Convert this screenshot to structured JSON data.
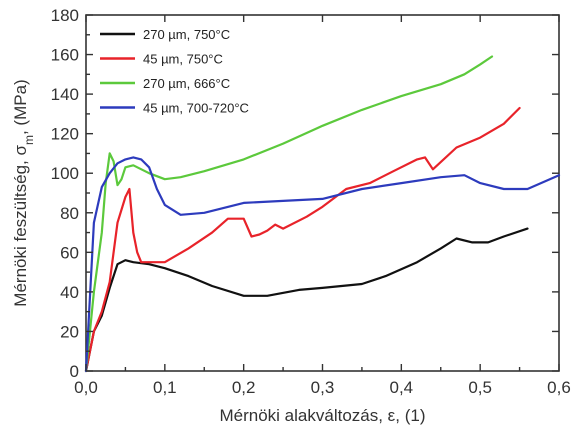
{
  "chart_data": {
    "type": "line",
    "xlabel": "Mérnöki alakváltozás, ε, (1)",
    "ylabel": "Mérnöki feszültség, σm, (MPa)",
    "ylabel_parts": {
      "main": "Mérnöki feszültség, σ",
      "sub": "m",
      "tail": ", (MPa)"
    },
    "xlim": [
      0,
      0.6
    ],
    "ylim": [
      0,
      180
    ],
    "xticks": [
      0.0,
      0.1,
      0.2,
      0.3,
      0.4,
      0.5,
      0.6
    ],
    "xtick_labels": [
      "0,0",
      "0,1",
      "0,2",
      "0,3",
      "0,4",
      "0,5",
      "0,6"
    ],
    "yticks": [
      0,
      20,
      40,
      60,
      80,
      100,
      120,
      140,
      160,
      180
    ],
    "ytick_labels": [
      "0",
      "20",
      "40",
      "60",
      "80",
      "100",
      "120",
      "140",
      "160",
      "180"
    ],
    "grid": false,
    "legend_position": "top-left",
    "series": [
      {
        "name": "270 µm, 750°C",
        "color": "#111111",
        "x": [
          0.0,
          0.01,
          0.02,
          0.03,
          0.04,
          0.05,
          0.06,
          0.08,
          0.1,
          0.13,
          0.16,
          0.2,
          0.23,
          0.27,
          0.3,
          0.35,
          0.38,
          0.42,
          0.45,
          0.47,
          0.49,
          0.51,
          0.53,
          0.56
        ],
        "y": [
          0,
          20,
          28,
          42,
          54,
          56,
          55,
          54,
          52,
          48,
          43,
          38,
          38,
          41,
          42,
          44,
          48,
          55,
          62,
          67,
          65,
          65,
          68,
          72
        ]
      },
      {
        "name": "45 µm, 750°C",
        "color": "#e8232a",
        "x": [
          0.0,
          0.01,
          0.02,
          0.03,
          0.04,
          0.05,
          0.055,
          0.06,
          0.065,
          0.07,
          0.1,
          0.13,
          0.16,
          0.18,
          0.2,
          0.21,
          0.22,
          0.23,
          0.24,
          0.25,
          0.28,
          0.3,
          0.33,
          0.36,
          0.39,
          0.42,
          0.43,
          0.44,
          0.47,
          0.5,
          0.53,
          0.55
        ],
        "y": [
          0,
          20,
          30,
          45,
          75,
          88,
          92,
          70,
          60,
          55,
          55,
          62,
          70,
          77,
          77,
          68,
          69,
          71,
          74,
          72,
          78,
          83,
          92,
          95,
          101,
          107,
          108,
          102,
          113,
          118,
          125,
          133
        ]
      },
      {
        "name": "270 µm, 666°C",
        "color": "#5cc93c",
        "x": [
          0.0,
          0.01,
          0.02,
          0.025,
          0.03,
          0.035,
          0.04,
          0.045,
          0.05,
          0.06,
          0.08,
          0.1,
          0.12,
          0.15,
          0.2,
          0.25,
          0.3,
          0.35,
          0.4,
          0.45,
          0.48,
          0.5,
          0.515
        ],
        "y": [
          0,
          40,
          70,
          95,
          110,
          106,
          94,
          97,
          103,
          104,
          100,
          97,
          98,
          101,
          107,
          115,
          124,
          132,
          139,
          145,
          150,
          155,
          159
        ]
      },
      {
        "name": "45 µm, 700-720°C",
        "color": "#2d3bbd",
        "x": [
          0.0,
          0.01,
          0.02,
          0.03,
          0.04,
          0.05,
          0.06,
          0.07,
          0.08,
          0.09,
          0.1,
          0.12,
          0.15,
          0.2,
          0.25,
          0.3,
          0.35,
          0.4,
          0.45,
          0.48,
          0.5,
          0.53,
          0.56,
          0.6
        ],
        "y": [
          0,
          75,
          93,
          100,
          105,
          107,
          108,
          107,
          103,
          92,
          84,
          79,
          80,
          85,
          86,
          87,
          92,
          95,
          98,
          99,
          95,
          92,
          92,
          99
        ]
      }
    ]
  }
}
